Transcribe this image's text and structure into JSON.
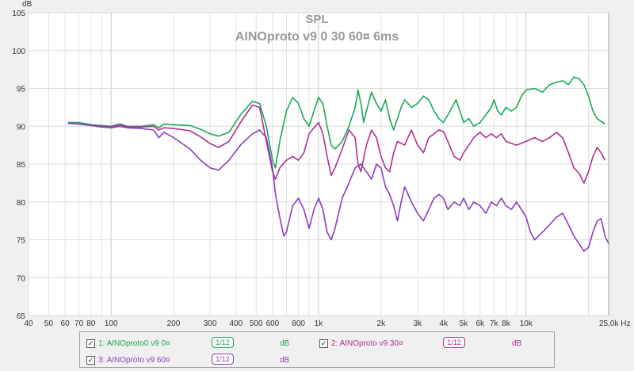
{
  "chart_data": {
    "type": "line",
    "title": "SPL",
    "subtitle": "AINOproto v9 0 30 60¤ 6ms",
    "ylabel": "dB",
    "xlabel": "Hz",
    "xscale": "log",
    "xlim": [
      40,
      25000
    ],
    "ylim": [
      65,
      105
    ],
    "yticks": [
      65,
      70,
      75,
      80,
      85,
      90,
      95,
      100,
      105
    ],
    "xtick_labels": [
      {
        "v": 40,
        "t": "40"
      },
      {
        "v": 50,
        "t": "50"
      },
      {
        "v": 60,
        "t": "60"
      },
      {
        "v": 70,
        "t": "70"
      },
      {
        "v": 80,
        "t": "80"
      },
      {
        "v": 100,
        "t": "100"
      },
      {
        "v": 200,
        "t": "200"
      },
      {
        "v": 300,
        "t": "300"
      },
      {
        "v": 400,
        "t": "400"
      },
      {
        "v": 500,
        "t": "500"
      },
      {
        "v": 600,
        "t": "600"
      },
      {
        "v": 800,
        "t": "800"
      },
      {
        "v": 1000,
        "t": "1k"
      },
      {
        "v": 2000,
        "t": "2k"
      },
      {
        "v": 3000,
        "t": "3k"
      },
      {
        "v": 4000,
        "t": "4k"
      },
      {
        "v": 5000,
        "t": "5k"
      },
      {
        "v": 6000,
        "t": "6k"
      },
      {
        "v": 7000,
        "t": "7k"
      },
      {
        "v": 8000,
        "t": "8k"
      },
      {
        "v": 10000,
        "t": "10k"
      },
      {
        "v": 25000,
        "t": "25,0k Hz"
      }
    ],
    "grid": true,
    "legend_position": "bottom",
    "series": [
      {
        "name": "1: AINOproto0 v9 0¤",
        "color": "#1aaa55",
        "points": [
          [
            62,
            90.5
          ],
          [
            70,
            90.5
          ],
          [
            80,
            90.2
          ],
          [
            90,
            90.1
          ],
          [
            100,
            90.0
          ],
          [
            110,
            90.3
          ],
          [
            120,
            90.0
          ],
          [
            140,
            90.0
          ],
          [
            160,
            90.2
          ],
          [
            170,
            89.8
          ],
          [
            180,
            90.3
          ],
          [
            200,
            90.2
          ],
          [
            240,
            90.1
          ],
          [
            270,
            89.6
          ],
          [
            300,
            89.0
          ],
          [
            330,
            88.7
          ],
          [
            370,
            89.2
          ],
          [
            420,
            91.5
          ],
          [
            480,
            93.3
          ],
          [
            520,
            93.0
          ],
          [
            560,
            90.0
          ],
          [
            600,
            85.5
          ],
          [
            620,
            84.5
          ],
          [
            650,
            88.0
          ],
          [
            700,
            92.0
          ],
          [
            750,
            93.8
          ],
          [
            800,
            93.0
          ],
          [
            850,
            91.0
          ],
          [
            900,
            90.0
          ],
          [
            950,
            92.0
          ],
          [
            1000,
            93.8
          ],
          [
            1050,
            93.0
          ],
          [
            1100,
            90.0
          ],
          [
            1150,
            87.5
          ],
          [
            1200,
            87.0
          ],
          [
            1300,
            88.0
          ],
          [
            1400,
            90.0
          ],
          [
            1500,
            92.5
          ],
          [
            1550,
            94.8
          ],
          [
            1600,
            93.0
          ],
          [
            1650,
            90.5
          ],
          [
            1700,
            92.0
          ],
          [
            1800,
            94.5
          ],
          [
            1900,
            93.0
          ],
          [
            2000,
            92.0
          ],
          [
            2100,
            93.5
          ],
          [
            2200,
            91.0
          ],
          [
            2300,
            89.5
          ],
          [
            2400,
            91.0
          ],
          [
            2500,
            92.5
          ],
          [
            2600,
            93.5
          ],
          [
            2800,
            92.5
          ],
          [
            3000,
            93.0
          ],
          [
            3200,
            94.0
          ],
          [
            3400,
            93.5
          ],
          [
            3600,
            92.0
          ],
          [
            3800,
            91.0
          ],
          [
            4000,
            90.5
          ],
          [
            4300,
            92.0
          ],
          [
            4600,
            93.5
          ],
          [
            4800,
            92.0
          ],
          [
            5000,
            90.5
          ],
          [
            5300,
            91.0
          ],
          [
            5600,
            90.0
          ],
          [
            6000,
            90.5
          ],
          [
            6400,
            91.5
          ],
          [
            6800,
            92.5
          ],
          [
            7000,
            93.5
          ],
          [
            7300,
            92.0
          ],
          [
            7600,
            91.5
          ],
          [
            8000,
            92.5
          ],
          [
            8500,
            92.0
          ],
          [
            9000,
            92.5
          ],
          [
            9500,
            94.0
          ],
          [
            10000,
            94.8
          ],
          [
            11000,
            95.0
          ],
          [
            12000,
            94.5
          ],
          [
            13000,
            95.5
          ],
          [
            14000,
            95.8
          ],
          [
            15000,
            96.0
          ],
          [
            16000,
            95.5
          ],
          [
            17000,
            96.5
          ],
          [
            18000,
            96.3
          ],
          [
            19000,
            95.5
          ],
          [
            20000,
            94.0
          ],
          [
            21000,
            92.0
          ],
          [
            22000,
            91.0
          ],
          [
            24000,
            90.3
          ]
        ]
      },
      {
        "name": "2: AINOproto v9 30¤",
        "color": "#b03090",
        "points": [
          [
            62,
            90.4
          ],
          [
            70,
            90.3
          ],
          [
            80,
            90.1
          ],
          [
            90,
            90.0
          ],
          [
            100,
            89.9
          ],
          [
            110,
            90.2
          ],
          [
            120,
            89.9
          ],
          [
            140,
            89.9
          ],
          [
            160,
            90.0
          ],
          [
            170,
            89.5
          ],
          [
            180,
            89.8
          ],
          [
            200,
            89.7
          ],
          [
            240,
            89.4
          ],
          [
            270,
            88.6
          ],
          [
            300,
            87.7
          ],
          [
            330,
            87.2
          ],
          [
            370,
            88.0
          ],
          [
            420,
            90.5
          ],
          [
            480,
            92.8
          ],
          [
            520,
            92.5
          ],
          [
            560,
            88.0
          ],
          [
            600,
            84.0
          ],
          [
            620,
            83.0
          ],
          [
            650,
            84.5
          ],
          [
            700,
            85.5
          ],
          [
            750,
            86.0
          ],
          [
            800,
            85.5
          ],
          [
            850,
            86.5
          ],
          [
            900,
            89.0
          ],
          [
            950,
            89.8
          ],
          [
            1000,
            90.5
          ],
          [
            1050,
            89.0
          ],
          [
            1100,
            86.0
          ],
          [
            1150,
            83.5
          ],
          [
            1200,
            84.5
          ],
          [
            1300,
            87.0
          ],
          [
            1400,
            89.5
          ],
          [
            1500,
            88.5
          ],
          [
            1550,
            85.0
          ],
          [
            1600,
            84.0
          ],
          [
            1700,
            87.5
          ],
          [
            1800,
            89.5
          ],
          [
            1900,
            88.5
          ],
          [
            2000,
            86.0
          ],
          [
            2100,
            84.5
          ],
          [
            2200,
            84.0
          ],
          [
            2300,
            86.5
          ],
          [
            2400,
            88.0
          ],
          [
            2600,
            87.5
          ],
          [
            2800,
            89.5
          ],
          [
            3000,
            87.5
          ],
          [
            3200,
            86.5
          ],
          [
            3400,
            88.5
          ],
          [
            3600,
            89.0
          ],
          [
            3800,
            89.5
          ],
          [
            4000,
            89.3
          ],
          [
            4200,
            88.0
          ],
          [
            4500,
            86.0
          ],
          [
            4800,
            85.5
          ],
          [
            5000,
            86.5
          ],
          [
            5300,
            87.5
          ],
          [
            5600,
            88.5
          ],
          [
            6000,
            89.2
          ],
          [
            6400,
            88.5
          ],
          [
            6800,
            89.0
          ],
          [
            7200,
            88.5
          ],
          [
            7600,
            89.0
          ],
          [
            8000,
            88.0
          ],
          [
            9000,
            87.5
          ],
          [
            10000,
            88.0
          ],
          [
            11000,
            88.5
          ],
          [
            12000,
            88.0
          ],
          [
            13000,
            88.5
          ],
          [
            14000,
            89.2
          ],
          [
            15000,
            88.5
          ],
          [
            16000,
            86.5
          ],
          [
            17000,
            84.5
          ],
          [
            18000,
            83.8
          ],
          [
            19000,
            82.5
          ],
          [
            20000,
            84.0
          ],
          [
            21000,
            86.0
          ],
          [
            22000,
            87.2
          ],
          [
            23000,
            86.5
          ],
          [
            24000,
            85.5
          ]
        ]
      },
      {
        "name": "3: AINOproto v9 60¤",
        "color": "#8a3dbf",
        "points": [
          [
            62,
            90.4
          ],
          [
            70,
            90.3
          ],
          [
            80,
            90.1
          ],
          [
            90,
            89.9
          ],
          [
            100,
            89.8
          ],
          [
            110,
            90.0
          ],
          [
            120,
            89.8
          ],
          [
            140,
            89.7
          ],
          [
            160,
            89.5
          ],
          [
            170,
            88.5
          ],
          [
            180,
            89.2
          ],
          [
            200,
            88.5
          ],
          [
            240,
            87.0
          ],
          [
            270,
            85.5
          ],
          [
            300,
            84.5
          ],
          [
            330,
            84.2
          ],
          [
            370,
            85.5
          ],
          [
            420,
            87.5
          ],
          [
            480,
            89.0
          ],
          [
            520,
            89.5
          ],
          [
            560,
            88.5
          ],
          [
            600,
            84.5
          ],
          [
            620,
            81.0
          ],
          [
            650,
            78.0
          ],
          [
            680,
            75.5
          ],
          [
            700,
            76.0
          ],
          [
            750,
            79.5
          ],
          [
            800,
            80.5
          ],
          [
            850,
            79.0
          ],
          [
            900,
            76.5
          ],
          [
            950,
            79.0
          ],
          [
            1000,
            80.5
          ],
          [
            1050,
            79.0
          ],
          [
            1100,
            76.0
          ],
          [
            1150,
            75.0
          ],
          [
            1200,
            76.5
          ],
          [
            1300,
            80.5
          ],
          [
            1400,
            82.5
          ],
          [
            1500,
            84.5
          ],
          [
            1600,
            85.0
          ],
          [
            1700,
            84.0
          ],
          [
            1800,
            83.0
          ],
          [
            1900,
            85.0
          ],
          [
            2000,
            84.5
          ],
          [
            2100,
            82.0
          ],
          [
            2200,
            81.0
          ],
          [
            2300,
            79.5
          ],
          [
            2400,
            77.5
          ],
          [
            2500,
            80.0
          ],
          [
            2600,
            82.0
          ],
          [
            2800,
            80.0
          ],
          [
            3000,
            78.5
          ],
          [
            3200,
            77.5
          ],
          [
            3400,
            79.0
          ],
          [
            3600,
            80.5
          ],
          [
            3800,
            81.0
          ],
          [
            4000,
            80.5
          ],
          [
            4200,
            79.0
          ],
          [
            4500,
            80.0
          ],
          [
            4800,
            79.5
          ],
          [
            5000,
            80.5
          ],
          [
            5300,
            79.0
          ],
          [
            5600,
            80.0
          ],
          [
            6000,
            79.5
          ],
          [
            6400,
            78.5
          ],
          [
            6800,
            80.0
          ],
          [
            7200,
            79.5
          ],
          [
            7600,
            80.5
          ],
          [
            8000,
            79.5
          ],
          [
            8500,
            79.0
          ],
          [
            9000,
            80.0
          ],
          [
            9500,
            79.0
          ],
          [
            10000,
            78.0
          ],
          [
            10500,
            76.0
          ],
          [
            11000,
            75.0
          ],
          [
            12000,
            76.0
          ],
          [
            13000,
            77.0
          ],
          [
            14000,
            78.0
          ],
          [
            15000,
            78.5
          ],
          [
            16000,
            77.0
          ],
          [
            17000,
            75.5
          ],
          [
            18000,
            74.5
          ],
          [
            19000,
            73.5
          ],
          [
            20000,
            74.0
          ],
          [
            21000,
            76.0
          ],
          [
            22000,
            77.5
          ],
          [
            23000,
            77.8
          ],
          [
            24000,
            75.5
          ],
          [
            25000,
            74.5
          ]
        ]
      }
    ]
  },
  "legend": {
    "items": [
      {
        "check": "✓",
        "label": "1: AINOproto0 v9 0¤",
        "smoothing": "1/12",
        "unit": "dB",
        "color": "#1aaa55"
      },
      {
        "check": "✓",
        "label": "2: AINOproto v9 30¤",
        "smoothing": "1/12",
        "unit": "dB",
        "color": "#b03090"
      },
      {
        "check": "✓",
        "label": "3: AINOproto v9 60¤",
        "smoothing": "1/12",
        "unit": "dB",
        "color": "#8a3dbf"
      }
    ]
  }
}
